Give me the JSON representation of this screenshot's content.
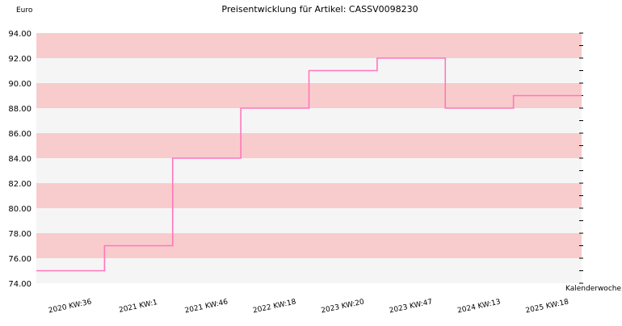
{
  "chart_data": {
    "type": "line",
    "step": true,
    "title": "Preisentwicklung für Artikel: CASSV0098230",
    "ylabel": "Euro",
    "xlabel": "Kalenderwoche",
    "ylim": [
      74.0,
      94.0
    ],
    "y_ticks": [
      "74.00",
      "76.00",
      "78.00",
      "80.00",
      "82.00",
      "84.00",
      "86.00",
      "88.00",
      "90.00",
      "92.00",
      "94.00"
    ],
    "categories": [
      "2020 KW:36",
      "2021 KW:1",
      "2021 KW:46",
      "2022 KW:18",
      "2023 KW:20",
      "2023 KW:47",
      "2024 KW:13",
      "2025 KW:18"
    ],
    "series": [
      {
        "values": [
          75.0,
          77.0,
          84.0,
          88.0,
          91.0,
          92.0,
          88.0,
          89.0
        ]
      }
    ],
    "line_color": "#ff77bb",
    "band_colors": [
      "#f5f5f5",
      "#f8cccc"
    ],
    "grid": true,
    "legend": "none"
  }
}
